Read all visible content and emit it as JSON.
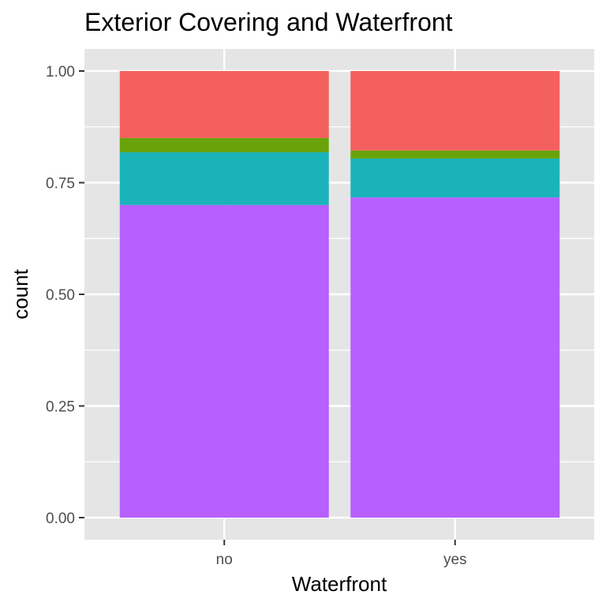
{
  "chart_data": {
    "type": "bar",
    "stacked": true,
    "normalized": true,
    "title": "Exterior Covering and Waterfront",
    "xlabel": "Waterfront",
    "ylabel": "count",
    "categories": [
      "no",
      "yes"
    ],
    "ylim": [
      0,
      1
    ],
    "yticks": [
      "0.00",
      "0.25",
      "0.50",
      "0.75",
      "1.00"
    ],
    "grid": true,
    "legend": "none",
    "background_color": "#E5E5E5",
    "grid_color": "#FFFFFF",
    "series": [
      {
        "color": "#B75FFF",
        "values": [
          0.7,
          0.717
        ]
      },
      {
        "color": "#1AB3BA",
        "values": [
          0.118,
          0.087
        ]
      },
      {
        "color": "#68A30B",
        "values": [
          0.032,
          0.018
        ]
      },
      {
        "color": "#F4605D",
        "values": [
          0.15,
          0.178
        ]
      }
    ]
  }
}
